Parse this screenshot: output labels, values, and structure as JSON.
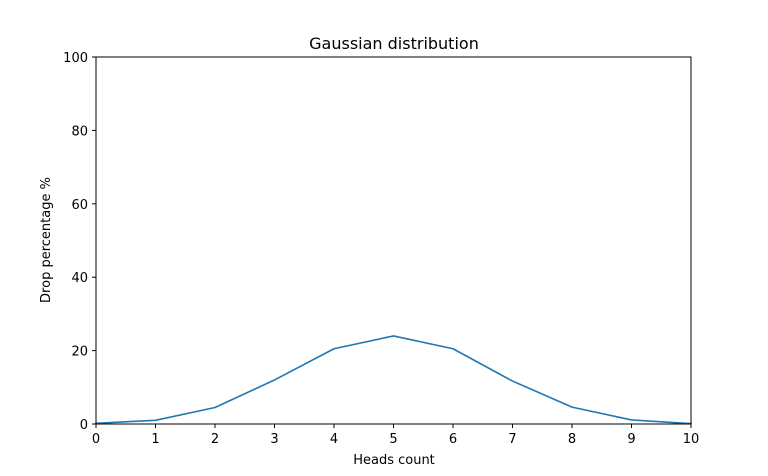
{
  "chart_data": {
    "type": "line",
    "title": "Gaussian distribution",
    "xlabel": "Heads count",
    "ylabel": "Drop percentage %",
    "xlim": [
      0,
      10
    ],
    "ylim": [
      0,
      100
    ],
    "xticks": [
      "0",
      "1",
      "2",
      "3",
      "4",
      "5",
      "6",
      "7",
      "8",
      "9",
      "10"
    ],
    "yticks": [
      "0",
      "20",
      "40",
      "60",
      "80",
      "100"
    ],
    "grid": false,
    "series": [
      {
        "color": "#1f77b4",
        "x": [
          0,
          1,
          2,
          3,
          4,
          5,
          6,
          7,
          8,
          9,
          10
        ],
        "y": [
          0.2,
          1.0,
          4.5,
          12.0,
          20.5,
          24.0,
          20.5,
          11.7,
          4.6,
          1.1,
          0.1
        ]
      }
    ]
  }
}
